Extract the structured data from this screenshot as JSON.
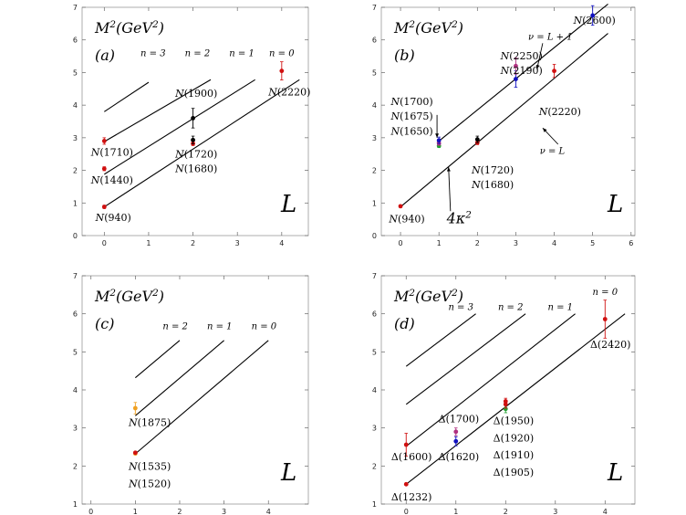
{
  "chart_data": [
    {
      "type": "scatter",
      "title": "M^2(GeV^2)",
      "panel_label": "(a)",
      "xlabel": "L",
      "xlim": [
        -0.5,
        4.6
      ],
      "ylim": [
        0,
        7
      ],
      "x_ticks": [
        "0",
        "1",
        "2",
        "3",
        "4"
      ],
      "y_ticks": [
        "0",
        "1",
        "2",
        "3",
        "4",
        "5",
        "6",
        "7"
      ],
      "lines": [
        {
          "name": "n = 0",
          "x": [
            0,
            4.4
          ],
          "y": [
            0.88,
            4.78
          ]
        },
        {
          "name": "n = 1",
          "x": [
            0,
            3.4
          ],
          "y": [
            1.88,
            4.78
          ]
        },
        {
          "name": "n = 2",
          "x": [
            0,
            2.4
          ],
          "y": [
            2.88,
            4.78
          ]
        },
        {
          "name": "n = 3",
          "x": [
            0,
            1.0
          ],
          "y": [
            3.8,
            4.7
          ]
        }
      ],
      "line_labels": [
        {
          "text": "n = 3",
          "x": 1.1,
          "y": 5.5
        },
        {
          "text": "n = 2",
          "x": 2.1,
          "y": 5.5
        },
        {
          "text": "n = 1",
          "x": 3.1,
          "y": 5.5
        },
        {
          "text": "n = 0",
          "x": 4.0,
          "y": 5.5
        }
      ],
      "points": [
        {
          "x": 0,
          "y": 0.88,
          "err": 0.05,
          "color": "#d01010"
        },
        {
          "x": 0,
          "y": 2.05,
          "err": 0.06,
          "color": "#d01010"
        },
        {
          "x": 0,
          "y": 2.9,
          "err": 0.1,
          "color": "#d01010"
        },
        {
          "x": 2,
          "y": 2.82,
          "err": 0.06,
          "color": "#d01010"
        },
        {
          "x": 2,
          "y": 2.93,
          "err": 0.12,
          "color": "#000000"
        },
        {
          "x": 2,
          "y": 3.6,
          "err": 0.3,
          "color": "#000000"
        },
        {
          "x": 4,
          "y": 5.05,
          "err": 0.28,
          "color": "#d01010"
        }
      ],
      "annotations": [
        {
          "text": "N(940)",
          "x": -0.2,
          "y": 0.45
        },
        {
          "text": "N(1440)",
          "x": -0.3,
          "y": 1.6
        },
        {
          "text": "N(1710)",
          "x": -0.3,
          "y": 2.45
        },
        {
          "text": "N(1900)",
          "x": 1.6,
          "y": 4.25
        },
        {
          "text": "N(1720)",
          "x": 1.6,
          "y": 2.4
        },
        {
          "text": "N(1680)",
          "x": 1.6,
          "y": 1.95
        },
        {
          "text": "N(2220)",
          "x": 3.7,
          "y": 4.3
        }
      ]
    },
    {
      "type": "scatter",
      "title": "M^2(GeV^2)",
      "panel_label": "(b)",
      "xlabel": "L",
      "xlim": [
        -0.5,
        6.1
      ],
      "ylim": [
        0,
        7
      ],
      "x_ticks": [
        "0",
        "1",
        "2",
        "3",
        "4",
        "5",
        "6"
      ],
      "y_ticks": [
        "0",
        "1",
        "2",
        "3",
        "4",
        "5",
        "6",
        "7"
      ],
      "lines": [
        {
          "name": "ν = L",
          "x": [
            0,
            5.4
          ],
          "y": [
            0.88,
            6.2
          ]
        },
        {
          "name": "ν = L + 1",
          "x": [
            0.95,
            5.4
          ],
          "y": [
            2.85,
            7.1
          ]
        }
      ],
      "line_labels": [
        {
          "text": "ν = L + 1",
          "x": 3.9,
          "y": 6.0
        },
        {
          "text": "ν = L",
          "x": 3.95,
          "y": 2.5
        }
      ],
      "points": [
        {
          "x": 0,
          "y": 0.9,
          "err": 0.04,
          "color": "#d01010"
        },
        {
          "x": 1,
          "y": 2.75,
          "err": 0.05,
          "color": "#20a030"
        },
        {
          "x": 1,
          "y": 2.83,
          "err": 0.06,
          "color": "#b03080"
        },
        {
          "x": 1,
          "y": 2.92,
          "err": 0.1,
          "color": "#1010c0"
        },
        {
          "x": 2,
          "y": 2.85,
          "err": 0.06,
          "color": "#d01010"
        },
        {
          "x": 2,
          "y": 2.95,
          "err": 0.1,
          "color": "#000000"
        },
        {
          "x": 3,
          "y": 4.8,
          "err": 0.25,
          "color": "#1010c0"
        },
        {
          "x": 3,
          "y": 5.2,
          "err": 0.25,
          "color": "#b03080"
        },
        {
          "x": 4,
          "y": 5.05,
          "err": 0.2,
          "color": "#d01010"
        },
        {
          "x": 5,
          "y": 6.75,
          "err": 0.3,
          "color": "#1010c0"
        }
      ],
      "annotations": [
        {
          "text": "N(940)",
          "x": -0.3,
          "y": 0.4
        },
        {
          "text": "N(1700)",
          "x": -0.25,
          "y": 4.0
        },
        {
          "text": "N(1675)",
          "x": -0.25,
          "y": 3.55
        },
        {
          "text": "N(1650)",
          "x": -0.25,
          "y": 3.1
        },
        {
          "text": "N(1720)",
          "x": 1.85,
          "y": 1.9
        },
        {
          "text": "N(1680)",
          "x": 1.85,
          "y": 1.45
        },
        {
          "text": "N(2250)",
          "x": 2.6,
          "y": 5.4
        },
        {
          "text": "N(2190)",
          "x": 2.6,
          "y": 4.95
        },
        {
          "text": "N(2220)",
          "x": 3.6,
          "y": 3.7
        },
        {
          "text": "N(2600)",
          "x": 4.5,
          "y": 6.5
        },
        {
          "text": "4κ^2",
          "x": 1.2,
          "y": 0.38
        }
      ]
    },
    {
      "type": "scatter",
      "title": "M^2(GeV^2)",
      "panel_label": "(c)",
      "xlabel": "L",
      "xlim": [
        -0.2,
        4.9
      ],
      "ylim": [
        1,
        7
      ],
      "x_ticks": [
        "0",
        "1",
        "2",
        "3",
        "4"
      ],
      "y_ticks": [
        "1",
        "2",
        "3",
        "4",
        "5",
        "6",
        "7"
      ],
      "lines": [
        {
          "name": "n = 0",
          "x": [
            1,
            4.0
          ],
          "y": [
            2.32,
            5.3
          ]
        },
        {
          "name": "n = 1",
          "x": [
            1,
            3.0
          ],
          "y": [
            3.32,
            5.3
          ]
        },
        {
          "name": "n = 2",
          "x": [
            1,
            2.0
          ],
          "y": [
            4.32,
            5.3
          ]
        }
      ],
      "line_labels": [
        {
          "text": "n = 2",
          "x": 1.9,
          "y": 5.6
        },
        {
          "text": "n = 1",
          "x": 2.9,
          "y": 5.6
        },
        {
          "text": "n = 0",
          "x": 3.9,
          "y": 5.6
        }
      ],
      "points": [
        {
          "x": 1,
          "y": 2.33,
          "err": 0.04,
          "color": "#f0a020"
        },
        {
          "x": 1,
          "y": 2.35,
          "err": 0.03,
          "color": "#d01010"
        },
        {
          "x": 1,
          "y": 3.52,
          "err": 0.15,
          "color": "#f0a020"
        }
      ],
      "annotations": [
        {
          "text": "N(1875)",
          "x": 0.85,
          "y": 3.05
        },
        {
          "text": "N(1535)",
          "x": 0.85,
          "y": 1.9
        },
        {
          "text": "N(1520)",
          "x": 0.85,
          "y": 1.45
        }
      ]
    },
    {
      "type": "scatter",
      "title": "M^2(GeV^2)",
      "panel_label": "(d)",
      "xlabel": "L",
      "xlim": [
        -0.5,
        4.6
      ],
      "ylim": [
        1,
        7
      ],
      "x_ticks": [
        "0",
        "1",
        "2",
        "3",
        "4"
      ],
      "y_ticks": [
        "1",
        "2",
        "3",
        "4",
        "5",
        "6",
        "7"
      ],
      "lines": [
        {
          "name": "n = 0",
          "x": [
            0,
            4.4
          ],
          "y": [
            1.52,
            6.0
          ]
        },
        {
          "name": "n = 1",
          "x": [
            0,
            3.4
          ],
          "y": [
            2.52,
            6.0
          ]
        },
        {
          "name": "n = 2",
          "x": [
            0,
            2.4
          ],
          "y": [
            3.62,
            6.0
          ]
        },
        {
          "name": "n = 3",
          "x": [
            0,
            1.4
          ],
          "y": [
            4.62,
            6.0
          ]
        }
      ],
      "line_labels": [
        {
          "text": "n = 3",
          "x": 1.1,
          "y": 6.1
        },
        {
          "text": "n = 2",
          "x": 2.1,
          "y": 6.1
        },
        {
          "text": "n = 1",
          "x": 3.1,
          "y": 6.1
        },
        {
          "text": "n = 0",
          "x": 4.0,
          "y": 6.5
        }
      ],
      "points": [
        {
          "x": 0,
          "y": 1.52,
          "err": 0.03,
          "color": "#d01010"
        },
        {
          "x": 0,
          "y": 2.56,
          "err": 0.3,
          "color": "#d01010"
        },
        {
          "x": 1,
          "y": 2.65,
          "err": 0.12,
          "color": "#1010c0"
        },
        {
          "x": 1,
          "y": 2.9,
          "err": 0.1,
          "color": "#b03080"
        },
        {
          "x": 2,
          "y": 3.5,
          "err": 0.1,
          "color": "#20a030"
        },
        {
          "x": 2,
          "y": 3.62,
          "err": 0.1,
          "color": "#d01010"
        },
        {
          "x": 2,
          "y": 3.7,
          "err": 0.08,
          "color": "#d01010"
        },
        {
          "x": 4,
          "y": 5.86,
          "err": 0.5,
          "color": "#d01010"
        }
      ],
      "annotations": [
        {
          "text": "Δ(1232)",
          "x": -0.3,
          "y": 1.1
        },
        {
          "text": "Δ(1600)",
          "x": -0.3,
          "y": 2.15
        },
        {
          "text": "Δ(1700)",
          "x": 0.65,
          "y": 3.15
        },
        {
          "text": "Δ(1620)",
          "x": 0.65,
          "y": 2.15
        },
        {
          "text": "Δ(1950)",
          "x": 1.75,
          "y": 3.1
        },
        {
          "text": "Δ(1920)",
          "x": 1.75,
          "y": 2.65
        },
        {
          "text": "Δ(1910)",
          "x": 1.75,
          "y": 2.2
        },
        {
          "text": "Δ(1905)",
          "x": 1.75,
          "y": 1.75
        },
        {
          "text": "Δ(2420)",
          "x": 3.7,
          "y": 5.1
        }
      ]
    }
  ]
}
